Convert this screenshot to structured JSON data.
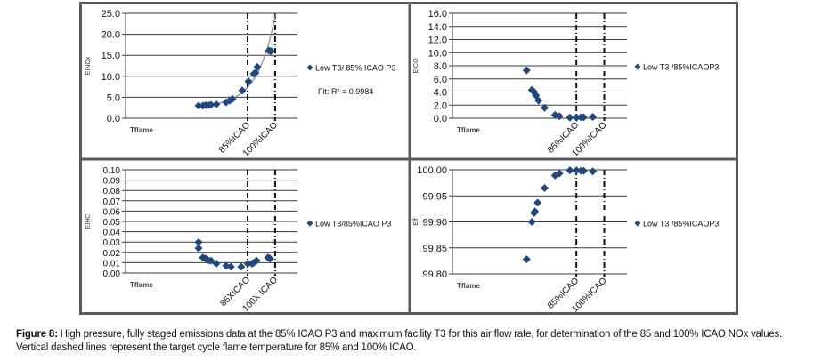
{
  "figure": {
    "caption_label": "Figure 8:",
    "caption_text": " High pressure, fully staged emissions data at the 85% ICAO P3 and maximum facility T3 for this air flow rate, for determination of the 85 and 100% ICAO NOx values. Vertical dashed lines represent the target cycle flame temperature for 85% and 100% ICAO.",
    "marker_color": "#1F497D",
    "grid_color": "#3a3a3a",
    "frame_color": "#5a5a5a"
  },
  "chart_data": [
    {
      "id": "einox",
      "type": "scatter",
      "title": "",
      "xlabel": "Tflame",
      "ylabel": "EINOx",
      "xlim": [
        0,
        100
      ],
      "ylim": [
        0,
        25
      ],
      "yticks": [
        "0.0",
        "5.0",
        "10.0",
        "15.0",
        "20.0",
        "25.0"
      ],
      "ytick_values": [
        0,
        5,
        10,
        15,
        20,
        25
      ],
      "grid": true,
      "legend": "right",
      "series": [
        {
          "name": "Low T3/ 85% ICAO P3",
          "x": [
            42.5,
            45,
            46.6,
            48.2,
            49.7,
            52.8,
            58.5,
            60.6,
            62.2,
            67.9,
            71.5,
            74.6,
            75.6,
            76.7,
            83.4,
            84.5
          ],
          "y": [
            3.0,
            3.0,
            3.1,
            3.1,
            3.2,
            3.3,
            3.8,
            4.2,
            4.6,
            6.6,
            8.8,
            10.6,
            10.8,
            12.2,
            16.1,
            16.0
          ]
        }
      ],
      "fit": {
        "type": "exponential",
        "label": "Fit:  R² = 0.9984",
        "r2": 0.9984
      },
      "vlines": [
        {
          "x": 71.0,
          "label": "85%ICAO"
        },
        {
          "x": 87.0,
          "label": "100%ICAO"
        }
      ]
    },
    {
      "id": "eico",
      "type": "scatter",
      "title": "",
      "xlabel": "Tflame",
      "ylabel": "EICO",
      "xlim": [
        0,
        100
      ],
      "ylim": [
        0,
        16
      ],
      "yticks": [
        "0.0",
        "2.0",
        "4.0",
        "6.0",
        "8.0",
        "10.0",
        "12.0",
        "14.0",
        "16.0"
      ],
      "ytick_values": [
        0,
        2,
        4,
        6,
        8,
        10,
        12,
        14,
        16
      ],
      "grid": true,
      "legend": "right",
      "series": [
        {
          "name": "Low T3 /85%ICAOP3",
          "x": [
            42.5,
            45.5,
            46.8,
            47.8,
            49.3,
            52.8,
            58.8,
            61.3,
            67.3,
            71.1,
            73.6,
            75.2,
            80.4
          ],
          "y": [
            7.3,
            4.3,
            4.0,
            3.5,
            2.7,
            1.6,
            0.5,
            0.3,
            0.1,
            0.1,
            0.15,
            0.15,
            0.2
          ]
        }
      ],
      "vlines": [
        {
          "x": 71.0,
          "label": "85%ICAO"
        },
        {
          "x": 87.0,
          "label": "100%ICAO"
        }
      ]
    },
    {
      "id": "eihc",
      "type": "scatter",
      "title": "",
      "xlabel": "Tflame",
      "ylabel": "EIHC",
      "xlim": [
        0,
        100
      ],
      "ylim": [
        0,
        0.1
      ],
      "yticks": [
        "0.00",
        "0.01",
        "0.02",
        "0.03",
        "0.04",
        "0.05",
        "0.06",
        "0.07",
        "0.08",
        "0.09",
        "0.10"
      ],
      "ytick_values": [
        0,
        0.01,
        0.02,
        0.03,
        0.04,
        0.05,
        0.06,
        0.07,
        0.08,
        0.09,
        0.1
      ],
      "grid": true,
      "legend": "right",
      "series": [
        {
          "name": "Low T3/85%ICAO P3",
          "x": [
            42.5,
            42.5,
            45,
            46.6,
            48.2,
            49.7,
            52.8,
            58.5,
            61.3,
            67.3,
            71.1,
            73.6,
            74.6,
            76.2,
            82.9,
            84.0
          ],
          "y": [
            0.03,
            0.024,
            0.015,
            0.014,
            0.012,
            0.012,
            0.009,
            0.007,
            0.006,
            0.006,
            0.009,
            0.009,
            0.01,
            0.012,
            0.015,
            0.014
          ]
        }
      ],
      "vlines": [
        {
          "x": 71.0,
          "label": "85XICAO"
        },
        {
          "x": 87.0,
          "label": "100X ICAO"
        }
      ]
    },
    {
      "id": "eff",
      "type": "scatter",
      "title": "",
      "xlabel": "Tflame",
      "ylabel": "Eff",
      "xlim": [
        0,
        100
      ],
      "ylim": [
        99.8,
        100.0
      ],
      "yticks": [
        "99.80",
        "99.85",
        "99.90",
        "99.95",
        "100.00"
      ],
      "ytick_values": [
        99.8,
        99.85,
        99.9,
        99.95,
        100.0
      ],
      "grid": true,
      "legend": "right",
      "series": [
        {
          "name": "Low T3 /85%ICAOP3",
          "x": [
            42.5,
            45.5,
            46.8,
            47.3,
            48.8,
            52.8,
            58.8,
            61.3,
            67.3,
            71.1,
            73.6,
            75.2,
            80.4
          ],
          "y": [
            99.828,
            99.9,
            99.917,
            99.92,
            99.937,
            99.965,
            99.989,
            99.993,
            99.999,
            99.999,
            99.998,
            99.998,
            99.997
          ]
        }
      ],
      "vlines": [
        {
          "x": 71.0,
          "label": "85%ICAO"
        },
        {
          "x": 87.0,
          "label": "100%ICAO"
        }
      ]
    }
  ]
}
